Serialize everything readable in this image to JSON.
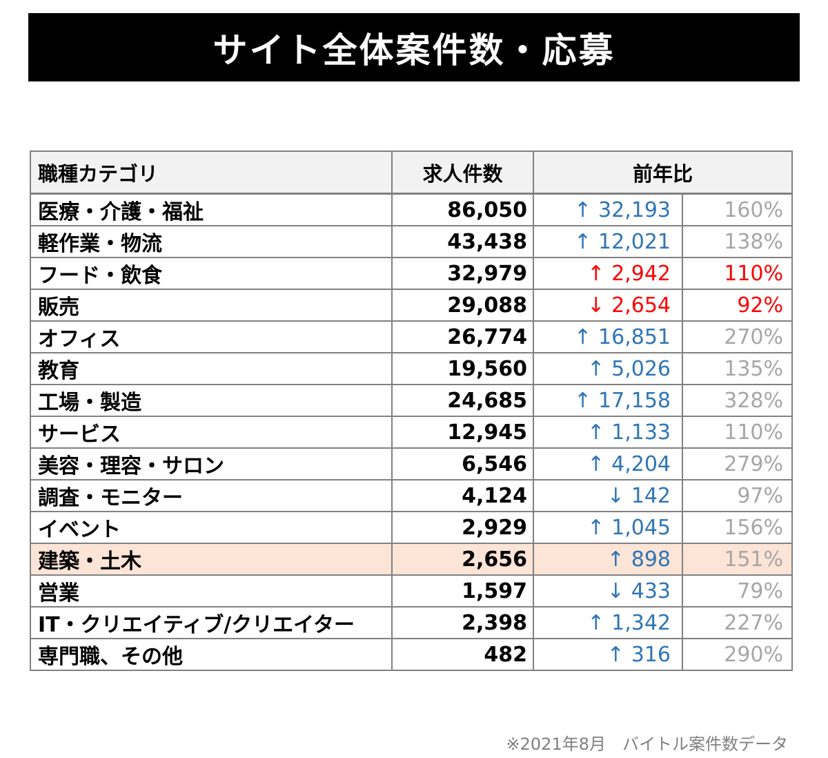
{
  "title": "サイト全体案件数・応募",
  "footer": "※2021年8月　バイトル案件数データ",
  "colors": {
    "banner_bg": "#000000",
    "banner_text": "#ffffff",
    "header_bg": "#f2f2f2",
    "border": "#808080",
    "blue": "#2e75b6",
    "red": "#ff0000",
    "gray": "#a6a6a6",
    "highlight_bg": "#fce4d6",
    "footer_text": "#7f7f7f"
  },
  "table": {
    "headers": {
      "category": "職種カテゴリ",
      "count": "求人件数",
      "yoy": "前年比"
    },
    "rows": [
      {
        "category": "医療・介護・福祉",
        "count": "86,050",
        "arrow": "↑",
        "diff": "32,193",
        "percent": "160%",
        "diff_color": "blue",
        "percent_color": "gray",
        "highlight": false
      },
      {
        "category": "軽作業・物流",
        "count": "43,438",
        "arrow": "↑",
        "diff": "12,021",
        "percent": "138%",
        "diff_color": "blue",
        "percent_color": "gray",
        "highlight": false
      },
      {
        "category": "フード・飲食",
        "count": "32,979",
        "arrow": "↑",
        "diff": "2,942",
        "percent": "110%",
        "diff_color": "red",
        "percent_color": "red",
        "highlight": false
      },
      {
        "category": "販売",
        "count": "29,088",
        "arrow": "↓",
        "diff": "2,654",
        "percent": "92%",
        "diff_color": "red",
        "percent_color": "red",
        "highlight": false
      },
      {
        "category": "オフィス",
        "count": "26,774",
        "arrow": "↑",
        "diff": "16,851",
        "percent": "270%",
        "diff_color": "blue",
        "percent_color": "gray",
        "highlight": false
      },
      {
        "category": "教育",
        "count": "19,560",
        "arrow": "↑",
        "diff": "5,026",
        "percent": "135%",
        "diff_color": "blue",
        "percent_color": "gray",
        "highlight": false
      },
      {
        "category": "工場・製造",
        "count": "24,685",
        "arrow": "↑",
        "diff": "17,158",
        "percent": "328%",
        "diff_color": "blue",
        "percent_color": "gray",
        "highlight": false
      },
      {
        "category": "サービス",
        "count": "12,945",
        "arrow": "↑",
        "diff": "1,133",
        "percent": "110%",
        "diff_color": "blue",
        "percent_color": "gray",
        "highlight": false
      },
      {
        "category": "美容・理容・サロン",
        "count": "6,546",
        "arrow": "↑",
        "diff": "4,204",
        "percent": "279%",
        "diff_color": "blue",
        "percent_color": "gray",
        "highlight": false
      },
      {
        "category": "調査・モニター",
        "count": "4,124",
        "arrow": "↓",
        "diff": "142",
        "percent": "97%",
        "diff_color": "blue",
        "percent_color": "gray",
        "highlight": false
      },
      {
        "category": "イベント",
        "count": "2,929",
        "arrow": "↑",
        "diff": "1,045",
        "percent": "156%",
        "diff_color": "blue",
        "percent_color": "gray",
        "highlight": false
      },
      {
        "category": "建築・土木",
        "count": "2,656",
        "arrow": "↑",
        "diff": "898",
        "percent": "151%",
        "diff_color": "blue",
        "percent_color": "gray",
        "highlight": true
      },
      {
        "category": "営業",
        "count": "1,597",
        "arrow": "↓",
        "diff": "433",
        "percent": "79%",
        "diff_color": "blue",
        "percent_color": "gray",
        "highlight": false
      },
      {
        "category": "IT・クリエイティブ/クリエイター",
        "count": "2,398",
        "arrow": "↑",
        "diff": "1,342",
        "percent": "227%",
        "diff_color": "blue",
        "percent_color": "gray",
        "highlight": false
      },
      {
        "category": "専門職、その他",
        "count": "482",
        "arrow": "↑",
        "diff": "316",
        "percent": "290%",
        "diff_color": "blue",
        "percent_color": "gray",
        "highlight": false
      }
    ]
  }
}
